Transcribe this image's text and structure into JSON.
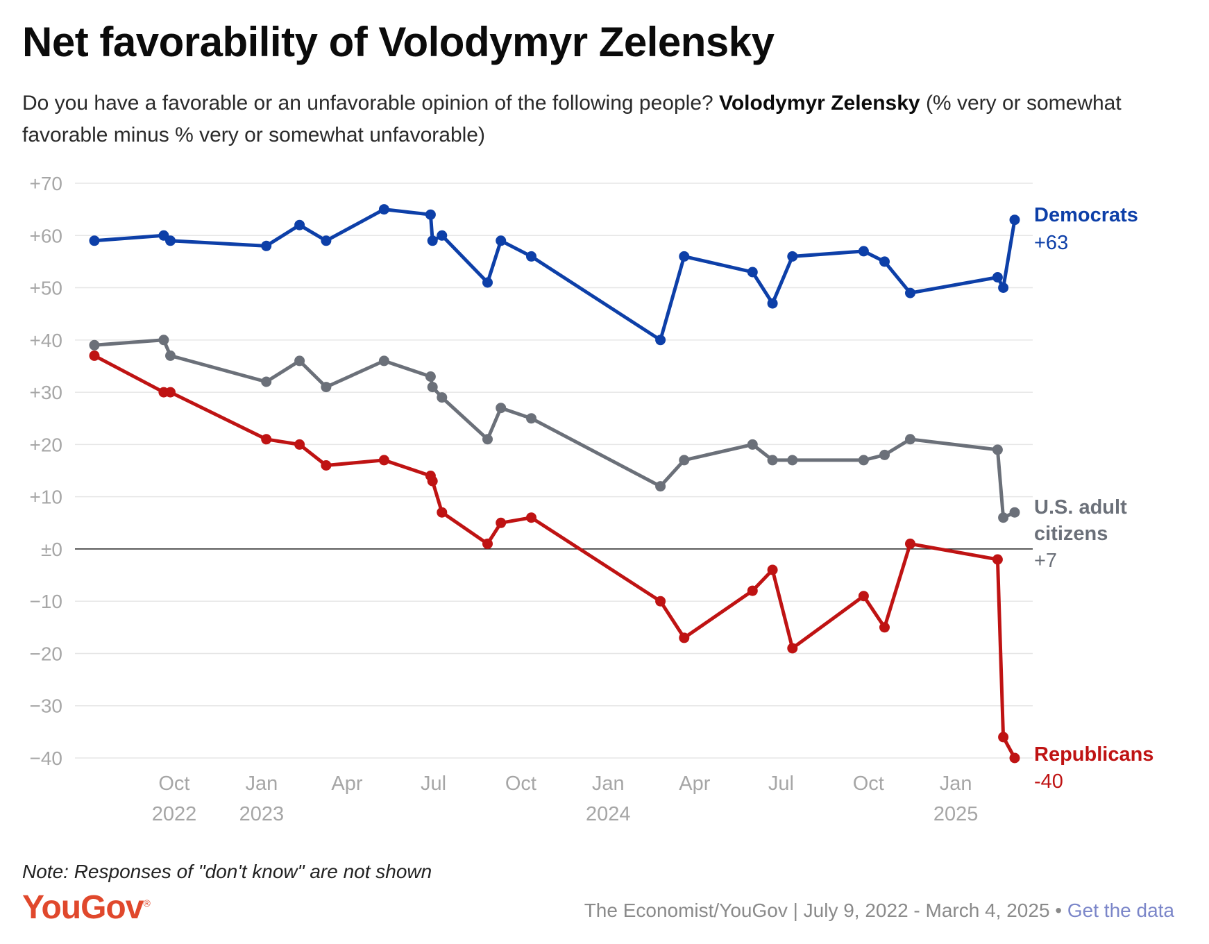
{
  "title": "Net favorability of Volodymyr Zelensky",
  "subtitle": {
    "text_before": "Do you have a favorable or an unfavorable opinion of the following people? ",
    "bold": "Volodymyr Zelensky",
    "text_after": " (% very or somewhat favorable minus % very or somewhat unfavorable)"
  },
  "note": "Note: Responses of \"don't know\" are not shown",
  "footer": {
    "logo": "YouGov",
    "logo_mark": "®",
    "source": "The Economist/YouGov | July 9, 2022 - March 4, 2025",
    "separator": " • ",
    "link": "Get the data"
  },
  "colors": {
    "democrats": "#0d3fa8",
    "citizens": "#6b7079",
    "republicans": "#bf1313",
    "logo": "#e0482c",
    "grid": "#e6e6e6",
    "zero_line": "#222222",
    "tick_text": "#a6a6a6"
  },
  "chart_data": {
    "type": "line",
    "title": "Net favorability of Volodymyr Zelensky",
    "ylim": [
      -40,
      70
    ],
    "y_ticks": [
      70,
      60,
      50,
      40,
      30,
      20,
      10,
      0,
      -10,
      -20,
      -30,
      -40
    ],
    "y_tick_labels": [
      "+70",
      "+60",
      "+50",
      "+40",
      "+30",
      "+20",
      "+10",
      "±0",
      "−10",
      "−20",
      "−30",
      "−40"
    ],
    "x_ticks": [
      {
        "date": "2022-10-01",
        "line1": "Oct",
        "line2": "2022"
      },
      {
        "date": "2023-01-01",
        "line1": "Jan",
        "line2": "2023"
      },
      {
        "date": "2023-04-01",
        "line1": "Apr",
        "line2": ""
      },
      {
        "date": "2023-07-01",
        "line1": "Jul",
        "line2": ""
      },
      {
        "date": "2023-10-01",
        "line1": "Oct",
        "line2": ""
      },
      {
        "date": "2024-01-01",
        "line1": "Jan",
        "line2": "2024"
      },
      {
        "date": "2024-04-01",
        "line1": "Apr",
        "line2": ""
      },
      {
        "date": "2024-07-01",
        "line1": "Jul",
        "line2": ""
      },
      {
        "date": "2024-10-01",
        "line1": "Oct",
        "line2": ""
      },
      {
        "date": "2025-01-01",
        "line1": "Jan",
        "line2": "2025"
      }
    ],
    "x": [
      "2022-07-09",
      "2022-09-20",
      "2022-09-27",
      "2023-01-06",
      "2023-02-10",
      "2023-03-10",
      "2023-05-10",
      "2023-06-28",
      "2023-06-30",
      "2023-07-10",
      "2023-08-27",
      "2023-09-10",
      "2023-10-12",
      "2024-02-25",
      "2024-03-21",
      "2024-06-01",
      "2024-06-22",
      "2024-07-13",
      "2024-09-26",
      "2024-10-18",
      "2024-11-14",
      "2025-02-14",
      "2025-02-20",
      "2025-03-04"
    ],
    "series": [
      {
        "name": "Democrats",
        "label_line1": "Democrats",
        "label_line2": "",
        "end_label": "+63",
        "values": [
          59,
          60,
          59,
          58,
          62,
          59,
          65,
          64,
          59,
          60,
          51,
          59,
          56,
          40,
          56,
          53,
          47,
          56,
          57,
          55,
          49,
          52,
          50,
          63
        ]
      },
      {
        "name": "U.S. adult citizens",
        "label_line1": "U.S. adult",
        "label_line2": "citizens",
        "end_label": "+7",
        "values": [
          39,
          40,
          37,
          32,
          36,
          31,
          36,
          33,
          31,
          29,
          21,
          27,
          25,
          12,
          17,
          20,
          17,
          17,
          17,
          18,
          21,
          19,
          6,
          7
        ]
      },
      {
        "name": "Republicans",
        "label_line1": "Republicans",
        "label_line2": "",
        "end_label": "-40",
        "values": [
          37,
          30,
          30,
          21,
          20,
          16,
          17,
          14,
          13,
          7,
          1,
          5,
          6,
          -10,
          -17,
          -8,
          -4,
          -19,
          -9,
          -15,
          1,
          -2,
          -36,
          -40
        ]
      }
    ]
  }
}
